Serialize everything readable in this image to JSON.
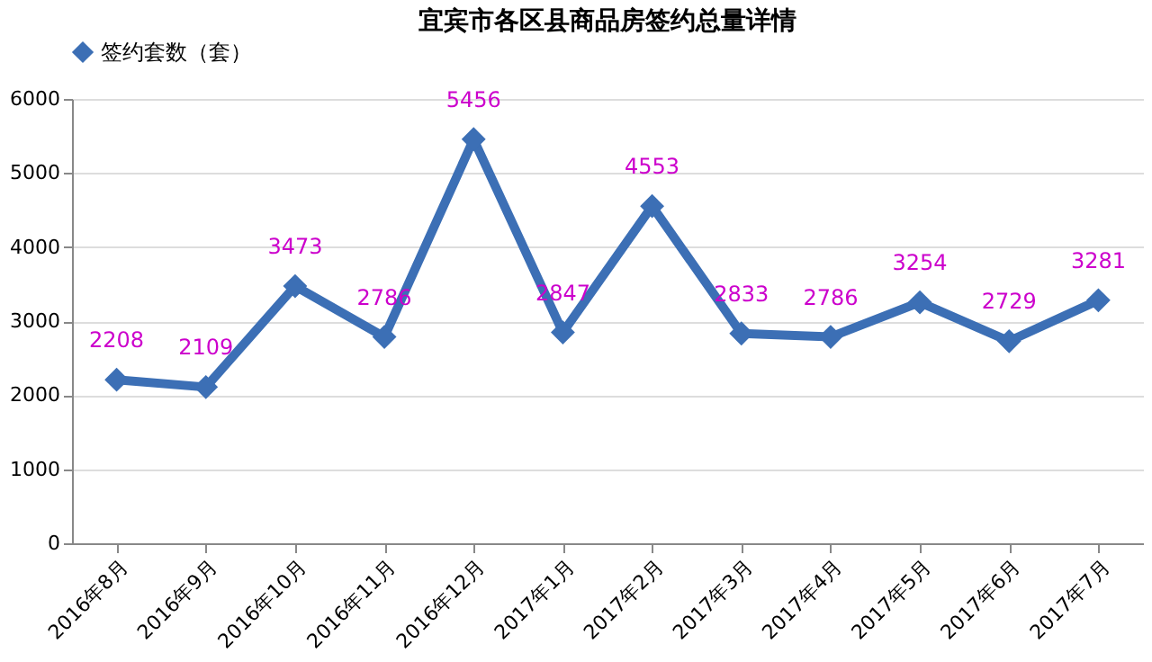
{
  "chart_data": {
    "type": "line",
    "title": "宜宾市各区县商品房签约总量详情",
    "categories": [
      "2016年8月",
      "2016年9月",
      "2016年10月",
      "2016年11月",
      "2016年12月",
      "2017年1月",
      "2017年2月",
      "2017年3月",
      "2017年4月",
      "2017年5月",
      "2017年6月",
      "2017年7月"
    ],
    "series": [
      {
        "name": "签约套数（套）",
        "color": "#3c6fb5",
        "values": [
          2208,
          2109,
          3473,
          2786,
          5456,
          2847,
          4553,
          2833,
          2786,
          3254,
          2729,
          3281
        ]
      }
    ],
    "ylim": [
      0,
      6000
    ],
    "yticks": [
      0,
      1000,
      2000,
      3000,
      4000,
      5000,
      6000
    ],
    "grid": "y",
    "legend": "top",
    "marker": "diamond",
    "data_labels": true
  }
}
